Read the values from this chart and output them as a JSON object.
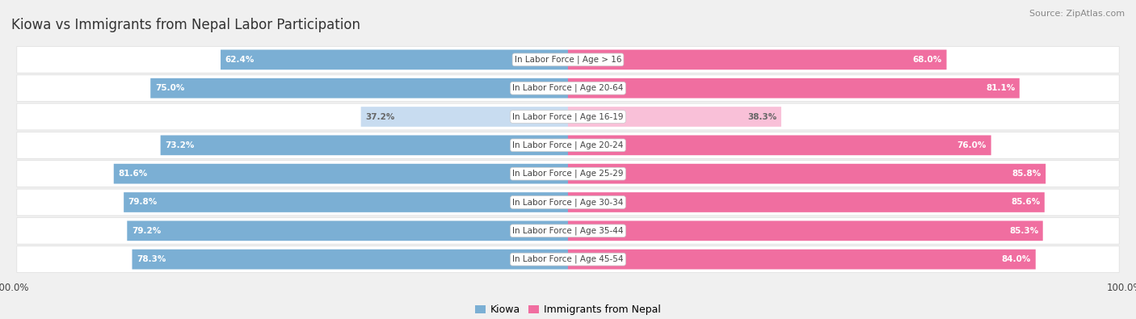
{
  "title": "Kiowa vs Immigrants from Nepal Labor Participation",
  "source": "Source: ZipAtlas.com",
  "categories": [
    "In Labor Force | Age > 16",
    "In Labor Force | Age 20-64",
    "In Labor Force | Age 16-19",
    "In Labor Force | Age 20-24",
    "In Labor Force | Age 25-29",
    "In Labor Force | Age 30-34",
    "In Labor Force | Age 35-44",
    "In Labor Force | Age 45-54"
  ],
  "kiowa_values": [
    62.4,
    75.0,
    37.2,
    73.2,
    81.6,
    79.8,
    79.2,
    78.3
  ],
  "nepal_values": [
    68.0,
    81.1,
    38.3,
    76.0,
    85.8,
    85.6,
    85.3,
    84.0
  ],
  "kiowa_color": "#7BAfd4",
  "nepal_color": "#F06EA0",
  "kiowa_color_light": "#C8DCF0",
  "nepal_color_light": "#F9C0D8",
  "bar_height": 0.68,
  "background_color": "#f0f0f0",
  "row_bg_color": "#ffffff",
  "max_value": 100.0,
  "title_fontsize": 12,
  "label_fontsize": 7.5,
  "value_fontsize": 7.5,
  "legend_fontsize": 9
}
